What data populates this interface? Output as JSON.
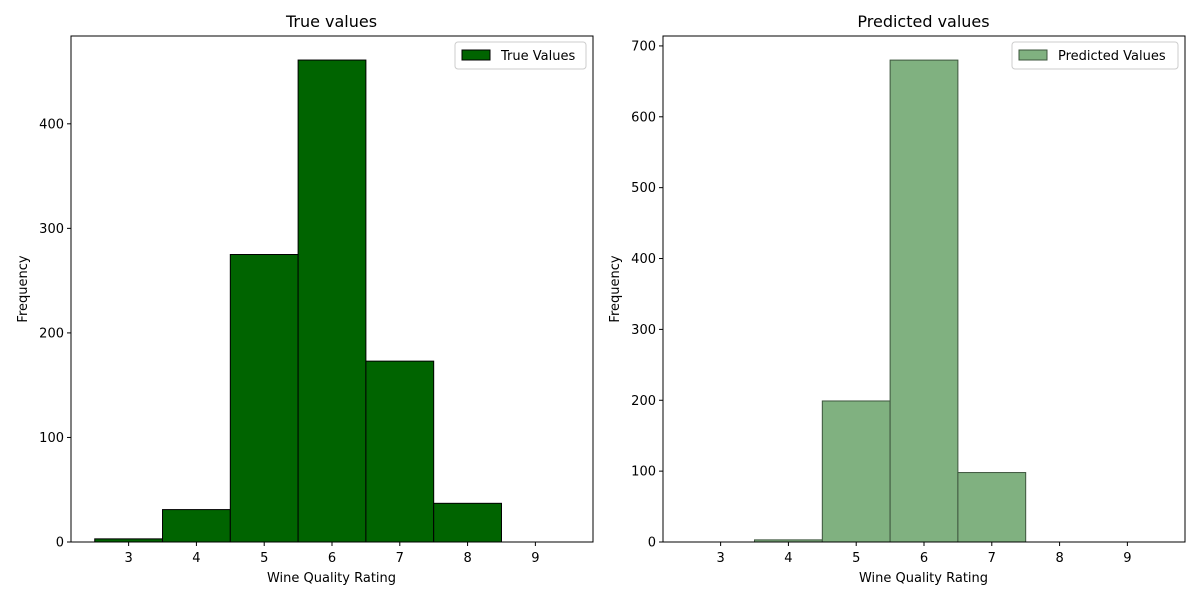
{
  "colors": {
    "true_fill": "#006400",
    "true_edge": "#000000",
    "pred_fill": "#80b180",
    "pred_edge": "#3d553d",
    "axis": "#000000",
    "legend_border": "#cccccc"
  },
  "chart_data": [
    {
      "type": "bar",
      "title": "True values",
      "xlabel": "Wine Quality Rating",
      "ylabel": "Frequency",
      "xlim": [
        2.15,
        9.85
      ],
      "ylim": [
        0,
        484
      ],
      "xticks": [
        3,
        4,
        5,
        6,
        7,
        8,
        9
      ],
      "yticks": [
        0,
        100,
        200,
        300,
        400
      ],
      "bin_edges": [
        2.5,
        3.5,
        4.5,
        5.5,
        6.5,
        7.5,
        8.5,
        9.5
      ],
      "series": [
        {
          "name": "True Values",
          "values": [
            3,
            31,
            275,
            461,
            173,
            37,
            0
          ]
        }
      ],
      "legend": "upper-right",
      "grid": false
    },
    {
      "type": "bar",
      "title": "Predicted values",
      "xlabel": "Wine Quality Rating",
      "ylabel": "Frequency",
      "xlim": [
        2.15,
        9.85
      ],
      "ylim": [
        0,
        714
      ],
      "xticks": [
        3,
        4,
        5,
        6,
        7,
        8,
        9
      ],
      "yticks": [
        0,
        100,
        200,
        300,
        400,
        500,
        600,
        700
      ],
      "bin_edges": [
        2.5,
        3.5,
        4.5,
        5.5,
        6.5,
        7.5,
        8.5,
        9.5
      ],
      "series": [
        {
          "name": "Predicted Values",
          "values": [
            0,
            3,
            199,
            680,
            98,
            0,
            0
          ]
        }
      ],
      "legend": "upper-right",
      "grid": false
    }
  ]
}
